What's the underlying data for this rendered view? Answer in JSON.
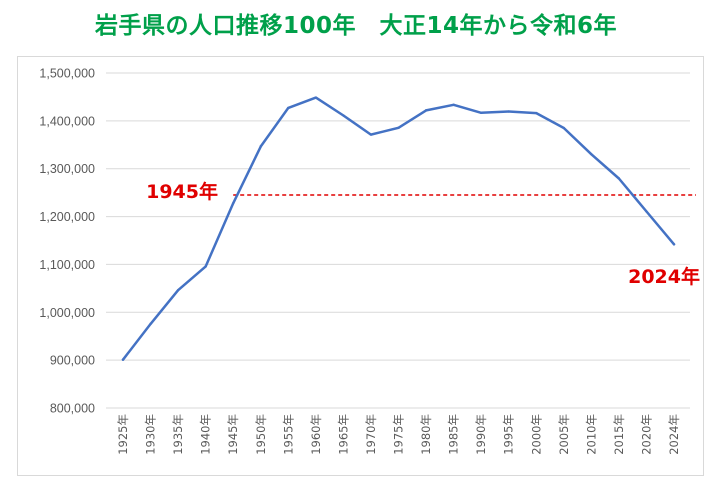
{
  "chart_data": {
    "type": "line",
    "title": "岩手県の人口推移100年　大正14年から令和6年",
    "xlabel": "",
    "ylabel": "",
    "ylim": [
      800000,
      1500000
    ],
    "ytick_step": 100000,
    "grid": true,
    "x": [
      "1925年",
      "1930年",
      "1935年",
      "1940年",
      "1945年",
      "1950年",
      "1955年",
      "1960年",
      "1965年",
      "1970年",
      "1975年",
      "1980年",
      "1985年",
      "1990年",
      "1995年",
      "2000年",
      "2005年",
      "2010年",
      "2015年",
      "2020年",
      "2024年"
    ],
    "series": [
      {
        "color": "#4472c4",
        "values": [
          900984,
          975771,
          1046111,
          1095793,
          1227789,
          1346728,
          1427097,
          1448517,
          1411118,
          1371383,
          1385563,
          1421927,
          1433611,
          1416928,
          1419505,
          1416180,
          1385041,
          1330147,
          1279594,
          1210534,
          1142000
        ]
      }
    ],
    "reference_line": {
      "value": 1245000,
      "from_index": 4,
      "to_index": 20,
      "color": "#e00000",
      "style": "dashed"
    },
    "annotations": [
      {
        "text": "1945年",
        "anchor_index": 4,
        "color": "#e00000"
      },
      {
        "text": "2024年",
        "anchor_index": 20,
        "color": "#e00000"
      }
    ]
  }
}
